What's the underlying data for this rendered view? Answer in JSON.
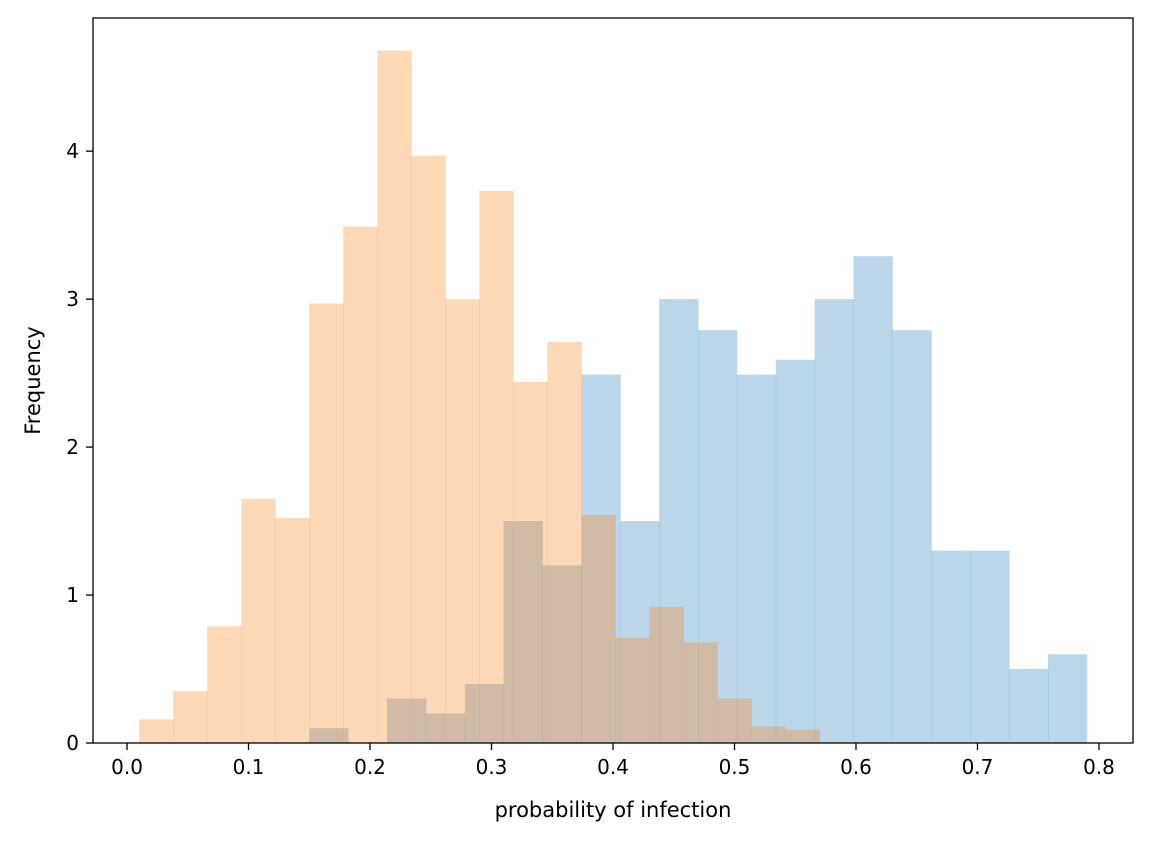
{
  "chart_data": {
    "type": "histogram",
    "title": "",
    "xlabel": "probability of infection",
    "ylabel": "Frequency",
    "xlim": [
      -0.028,
      0.828
    ],
    "ylim": [
      0,
      4.9
    ],
    "xticks": [
      {
        "value": 0.0,
        "label": "0.0"
      },
      {
        "value": 0.1,
        "label": "0.1"
      },
      {
        "value": 0.2,
        "label": "0.2"
      },
      {
        "value": 0.3,
        "label": "0.3"
      },
      {
        "value": 0.4,
        "label": "0.4"
      },
      {
        "value": 0.5,
        "label": "0.5"
      },
      {
        "value": 0.6,
        "label": "0.6"
      },
      {
        "value": 0.7,
        "label": "0.7"
      },
      {
        "value": 0.8,
        "label": "0.8"
      }
    ],
    "yticks": [
      {
        "value": 0,
        "label": "0"
      },
      {
        "value": 1,
        "label": "1"
      },
      {
        "value": 2,
        "label": "2"
      },
      {
        "value": 3,
        "label": "3"
      },
      {
        "value": 4,
        "label": "4"
      }
    ],
    "grid": false,
    "series": [
      {
        "color": "#1f77b4",
        "alpha": 0.3,
        "bin_edges": [
          0.15,
          0.182,
          0.214,
          0.246,
          0.278,
          0.31,
          0.342,
          0.374,
          0.406,
          0.438,
          0.47,
          0.502,
          0.534,
          0.566,
          0.598,
          0.63,
          0.662,
          0.694,
          0.726,
          0.758,
          0.79
        ],
        "values": [
          0.1,
          0.0,
          0.3,
          0.2,
          0.4,
          1.5,
          1.2,
          2.49,
          1.5,
          3.0,
          2.79,
          2.49,
          2.59,
          3.0,
          3.29,
          2.79,
          1.3,
          1.3,
          0.5,
          0.6
        ]
      },
      {
        "color": "#ff7f0e",
        "alpha": 0.3,
        "bin_edges": [
          0.01,
          0.038,
          0.066,
          0.094,
          0.122,
          0.15,
          0.178,
          0.206,
          0.234,
          0.262,
          0.29,
          0.318,
          0.346,
          0.374,
          0.402,
          0.43,
          0.458,
          0.486,
          0.514,
          0.542,
          0.57
        ],
        "values": [
          0.16,
          0.35,
          0.79,
          1.65,
          1.52,
          2.97,
          3.49,
          4.68,
          3.97,
          3.0,
          3.73,
          2.44,
          2.71,
          1.54,
          0.71,
          0.92,
          0.68,
          0.3,
          0.11,
          0.09
        ]
      }
    ]
  }
}
